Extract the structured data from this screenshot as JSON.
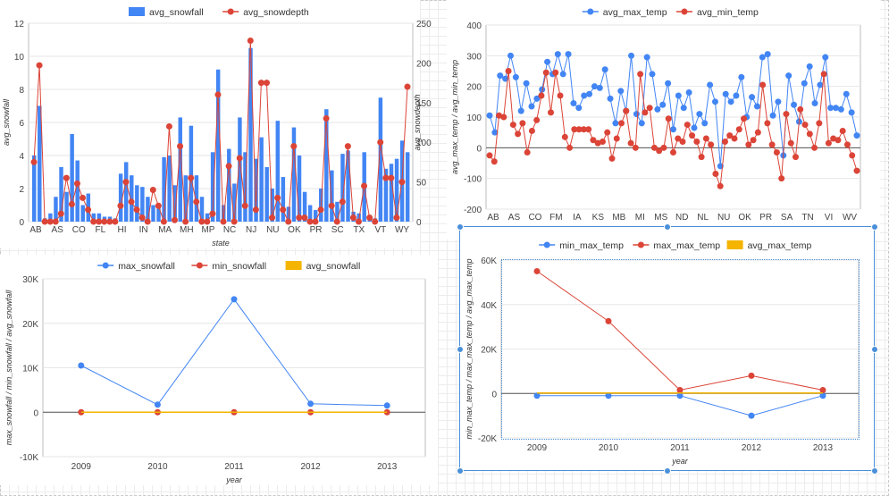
{
  "colors": {
    "blue": "#4285f4",
    "red": "#db4437",
    "orange": "#f4b400",
    "selection": "#4a90d9"
  },
  "chart_data": [
    {
      "type": "bar",
      "xlabel": "state",
      "ylabel": "avg_snowfall",
      "y2label": "avg_snowdepth",
      "ylim": [
        0,
        12
      ],
      "y2lim": [
        0,
        250
      ],
      "yticks": [
        "12",
        "10",
        "8",
        "6",
        "4",
        "2",
        "0"
      ],
      "y2ticks": [
        "250",
        "200",
        "150",
        "100",
        "50",
        "0"
      ],
      "xtick_labels": [
        "AB",
        "AS",
        "CO",
        "FL",
        "HI",
        "IN",
        "MA",
        "MH",
        "MP",
        "NC",
        "NJ",
        "NU",
        "OK",
        "PR",
        "SC",
        "TX",
        "VT",
        "WY"
      ],
      "legend": [
        "avg_snowfall",
        "avg_snowdepth"
      ],
      "legend_position": "top",
      "series": [
        {
          "name": "avg_snowfall",
          "type": "bar",
          "values": [
            4,
            7,
            0.2,
            0.5,
            1.5,
            3.3,
            1.8,
            5.3,
            3.7,
            1,
            1.7,
            0.5,
            0.5,
            0.3,
            0.3,
            0.2,
            2.9,
            3.6,
            2.8,
            2.2,
            2.1,
            1.5,
            1,
            0.8,
            3.9,
            4,
            2.2,
            6.3,
            2.8,
            5.8,
            2.8,
            1.5,
            0.5,
            4.2,
            9.2,
            1,
            4.4,
            2.3,
            6.3,
            4.2,
            10.5,
            3.8,
            5.1,
            3.3,
            2,
            6.1,
            2.7,
            0.9,
            5.7,
            4,
            1.8,
            1,
            0.7,
            2,
            6.8,
            3.1,
            1.2,
            4.1,
            4.3,
            0.6,
            0.5,
            4.2,
            0.4,
            0.2,
            7.5,
            3.2,
            3.5,
            3.8,
            4.9,
            4.2
          ]
        },
        {
          "name": "avg_snowdepth",
          "type": "line",
          "values": [
            75,
            197,
            0,
            0,
            0,
            10,
            55,
            22,
            48,
            30,
            15,
            0,
            0,
            0,
            0,
            0,
            20,
            50,
            25,
            15,
            5,
            0,
            40,
            20,
            0,
            120,
            2,
            95,
            0,
            55,
            25,
            0,
            0,
            10,
            160,
            0,
            70,
            0,
            80,
            20,
            228,
            15,
            175,
            175,
            5,
            30,
            15,
            0,
            95,
            5,
            5,
            0,
            0,
            15,
            130,
            20,
            0,
            25,
            95,
            5,
            0,
            45,
            5,
            0,
            100,
            55,
            55,
            5,
            50,
            170
          ]
        }
      ]
    },
    {
      "type": "line",
      "xlabel": "state",
      "ylabel": "avg_max_temp / avg_min_temp",
      "ylim": [
        -100,
        400
      ],
      "yticks": [
        "400",
        "300",
        "200",
        "100",
        "0",
        "-100",
        "-200"
      ],
      "xtick_labels": [
        "AB",
        "AS",
        "CO",
        "FM",
        "IA",
        "KS",
        "MB",
        "MI",
        "MS",
        "ND",
        "NL",
        "NU",
        "OK",
        "PR",
        "SA",
        "TN",
        "VI",
        "WV"
      ],
      "legend": [
        "avg_max_temp",
        "avg_min_temp"
      ],
      "legend_position": "top",
      "series": [
        {
          "name": "avg_max_temp",
          "values": [
            105,
            50,
            235,
            225,
            300,
            230,
            120,
            210,
            135,
            160,
            190,
            280,
            240,
            305,
            240,
            305,
            145,
            130,
            170,
            175,
            200,
            195,
            255,
            160,
            80,
            185,
            120,
            300,
            110,
            80,
            295,
            240,
            125,
            140,
            210,
            60,
            170,
            130,
            180,
            65,
            110,
            80,
            205,
            150,
            -60,
            175,
            150,
            170,
            230,
            100,
            165,
            135,
            295,
            305,
            105,
            150,
            -25,
            235,
            140,
            85,
            210,
            265,
            145,
            205,
            295,
            130,
            130,
            125,
            175,
            115,
            40
          ]
        },
        {
          "name": "avg_min_temp",
          "values": [
            -25,
            -45,
            105,
            100,
            250,
            75,
            45,
            80,
            -15,
            55,
            90,
            170,
            245,
            115,
            245,
            170,
            35,
            0,
            60,
            60,
            60,
            60,
            25,
            15,
            20,
            50,
            -35,
            30,
            80,
            120,
            15,
            0,
            240,
            115,
            130,
            0,
            -10,
            0,
            95,
            -15,
            30,
            20,
            75,
            40,
            20,
            -30,
            30,
            10,
            -85,
            -125,
            20,
            40,
            30,
            60,
            95,
            10,
            25,
            50,
            205,
            80,
            10,
            -15,
            -100,
            110,
            15,
            -30,
            125,
            75,
            45,
            0,
            80,
            240,
            15,
            30,
            25,
            55,
            10,
            -25,
            -75
          ]
        }
      ]
    },
    {
      "type": "line",
      "xlabel": "year",
      "ylabel": "max_snowfall / min_snowfall / avg_snowfall",
      "ylim": [
        -10000,
        30000
      ],
      "yticks": [
        "30K",
        "20K",
        "10K",
        "0",
        "-10K"
      ],
      "categories": [
        "2009",
        "2010",
        "2011",
        "2012",
        "2013"
      ],
      "legend": [
        "max_snowfall",
        "min_snowfall",
        "avg_snowfall"
      ],
      "legend_position": "top",
      "series": [
        {
          "name": "max_snowfall",
          "values": [
            10500,
            1700,
            25400,
            1900,
            1500
          ]
        },
        {
          "name": "min_snowfall",
          "values": [
            0,
            0,
            0,
            0,
            0
          ]
        },
        {
          "name": "avg_snowfall",
          "values": [
            5,
            4,
            6,
            4,
            4
          ]
        }
      ]
    },
    {
      "type": "line",
      "xlabel": "year",
      "ylabel": "min_max_temp / max_max_temp / avg_max_temp",
      "ylim": [
        -20000,
        60000
      ],
      "yticks": [
        "60K",
        "40K",
        "20K",
        "0",
        "-20K"
      ],
      "categories": [
        "2009",
        "2010",
        "2011",
        "2012",
        "2013"
      ],
      "legend": [
        "min_max_temp",
        "max_max_temp",
        "avg_max_temp"
      ],
      "legend_position": "top",
      "series": [
        {
          "name": "min_max_temp",
          "values": [
            -1000,
            -1000,
            -1000,
            -10000,
            -1000
          ]
        },
        {
          "name": "max_max_temp",
          "values": [
            55000,
            32500,
            1500,
            8000,
            1500
          ]
        },
        {
          "name": "avg_max_temp",
          "values": [
            200,
            200,
            200,
            200,
            200
          ]
        }
      ]
    }
  ]
}
